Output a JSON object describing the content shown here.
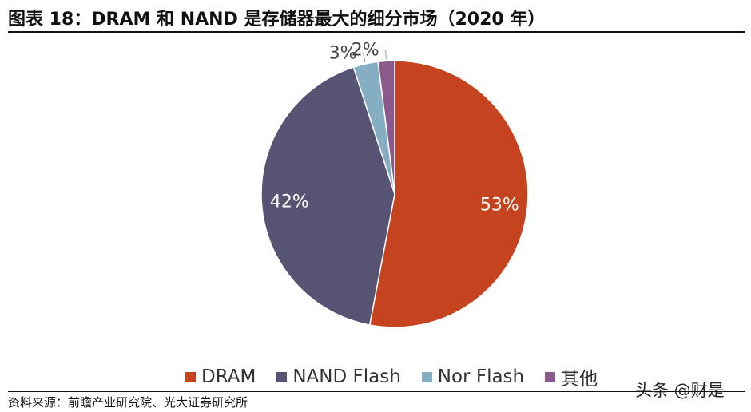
{
  "header": {
    "title": "图表 18：DRAM 和 NAND 是存储器最大的细分市场（2020 年）"
  },
  "chart_data": {
    "type": "pie",
    "title": "图表 18：DRAM 和 NAND 是存储器最大的细分市场（2020 年）",
    "categories": [
      "DRAM",
      "NAND Flash",
      "Nor Flash",
      "其他"
    ],
    "values": [
      53,
      42,
      3,
      2
    ],
    "labels": [
      "53%",
      "42%",
      "3%",
      "2%"
    ],
    "colors": [
      "#C5431F",
      "#575372",
      "#86AEC2",
      "#8A5A8C"
    ],
    "legend_position": "bottom"
  },
  "legend": {
    "items": [
      {
        "label": "DRAM",
        "color": "#C5431F"
      },
      {
        "label": "NAND Flash",
        "color": "#575372"
      },
      {
        "label": "Nor Flash",
        "color": "#86AEC2"
      },
      {
        "label": "其他",
        "color": "#8A5A8C"
      }
    ]
  },
  "watermark": "头条 @财是",
  "footer": {
    "source": "资料来源：前瞻产业研究院、光大证券研究所"
  }
}
